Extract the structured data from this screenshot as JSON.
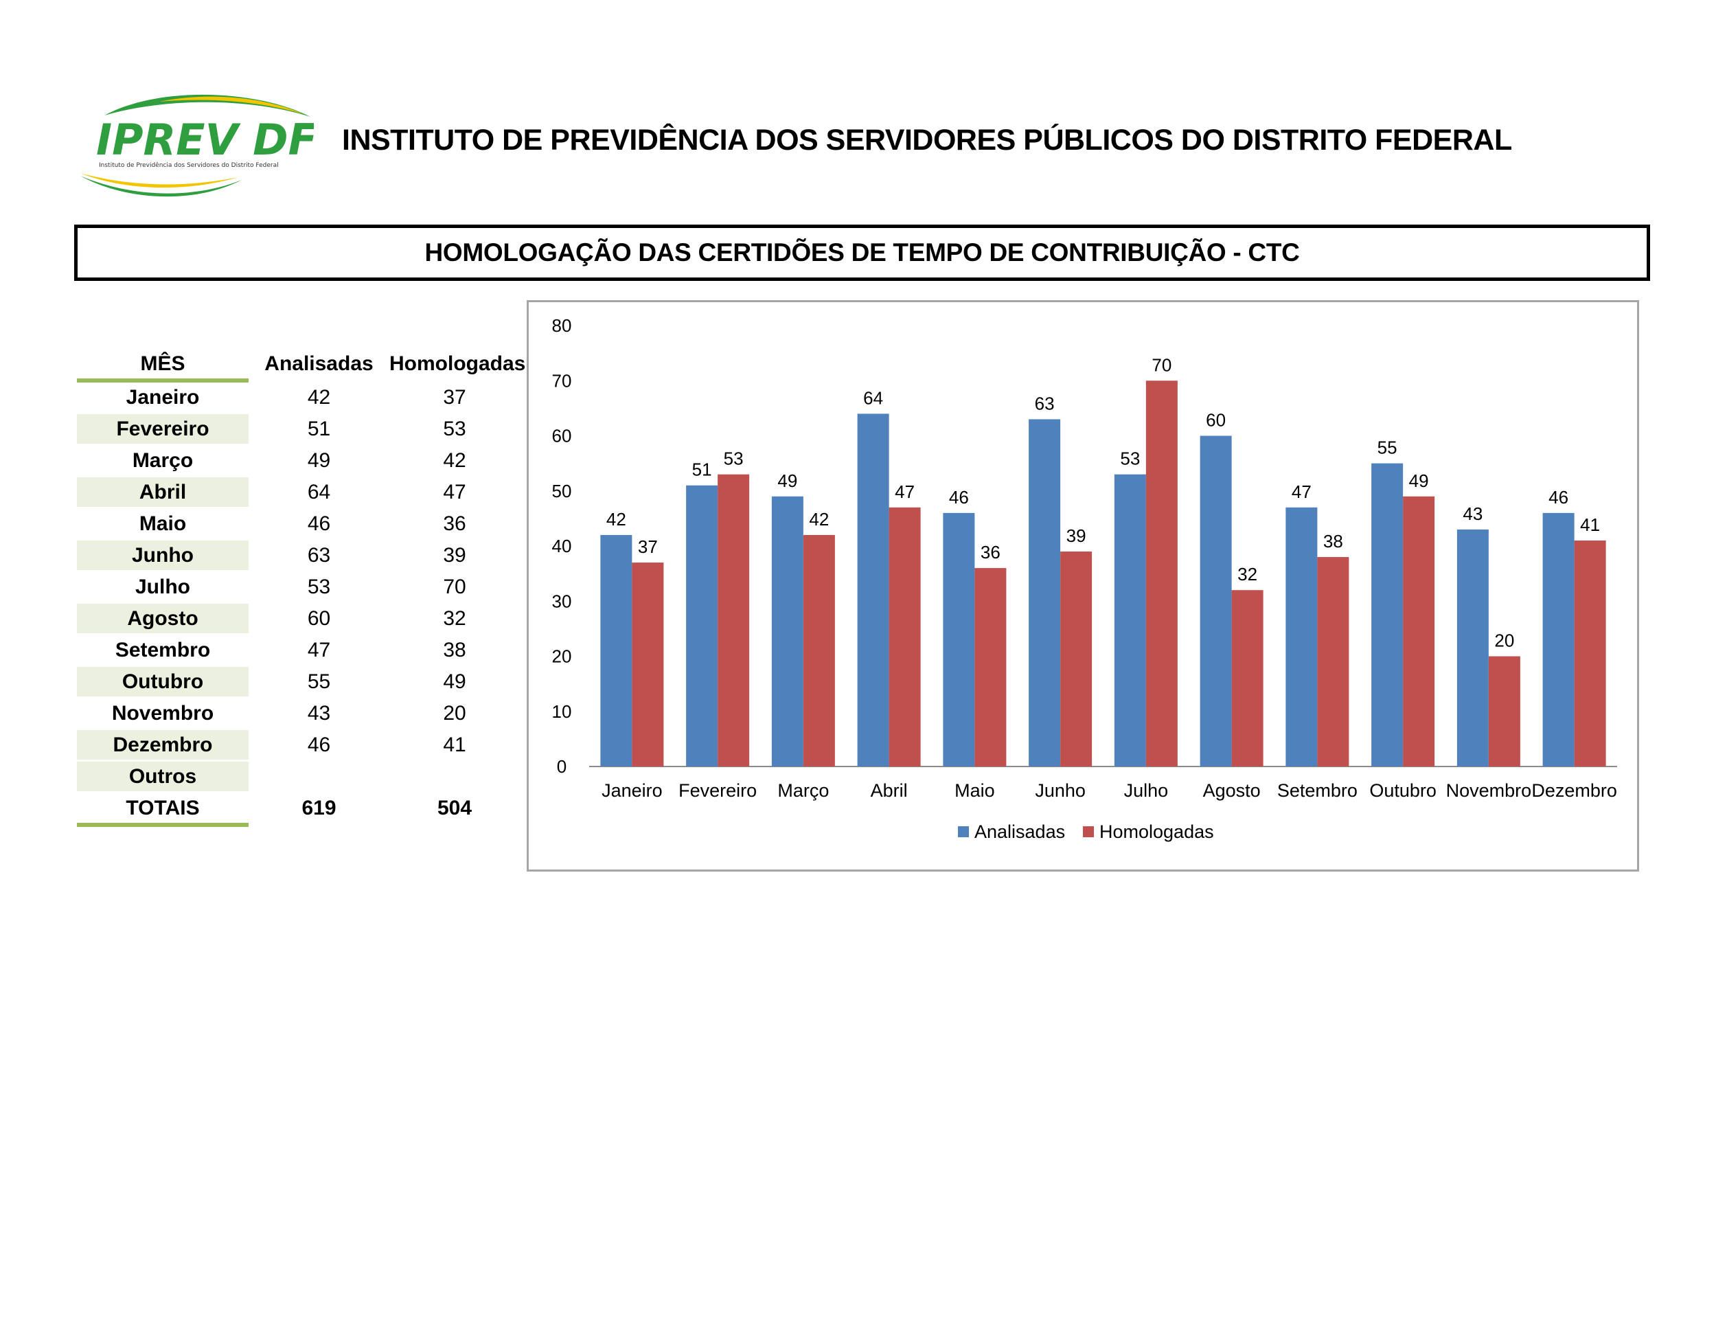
{
  "header": {
    "logo_text": "IPREV DF",
    "logo_subtext": "Instituto de Previdência dos Servidores do Distrito Federal",
    "org_title": "INSTITUTO DE PREVIDÊNCIA DOS SERVIDORES PÚBLICOS DO DISTRITO FEDERAL"
  },
  "report": {
    "title": "HOMOLOGAÇÃO DAS CERTIDÕES DE TEMPO DE CONTRIBUIÇÃO - CTC"
  },
  "table": {
    "headers": {
      "mes": "MÊS",
      "analisadas": "Analisadas",
      "homologadas": "Homologadas"
    },
    "rows": [
      {
        "mes": "Janeiro",
        "analisadas": "42",
        "homologadas": "37"
      },
      {
        "mes": "Fevereiro",
        "analisadas": "51",
        "homologadas": "53"
      },
      {
        "mes": "Março",
        "analisadas": "49",
        "homologadas": "42"
      },
      {
        "mes": "Abril",
        "analisadas": "64",
        "homologadas": "47"
      },
      {
        "mes": "Maio",
        "analisadas": "46",
        "homologadas": "36"
      },
      {
        "mes": "Junho",
        "analisadas": "63",
        "homologadas": "39"
      },
      {
        "mes": "Julho",
        "analisadas": "53",
        "homologadas": "70"
      },
      {
        "mes": "Agosto",
        "analisadas": "60",
        "homologadas": "32"
      },
      {
        "mes": "Setembro",
        "analisadas": "47",
        "homologadas": "38"
      },
      {
        "mes": "Outubro",
        "analisadas": "55",
        "homologadas": "49"
      },
      {
        "mes": "Novembro",
        "analisadas": "43",
        "homologadas": "20"
      },
      {
        "mes": "Dezembro",
        "analisadas": "46",
        "homologadas": "41"
      },
      {
        "mes": "Outros",
        "analisadas": "",
        "homologadas": ""
      }
    ],
    "totals": {
      "label": "TOTAIS",
      "analisadas": "619",
      "homologadas": "504"
    }
  },
  "colors": {
    "analisadas": "#4f81bd",
    "homologadas": "#c0504d",
    "table_shade": "#ebf1de",
    "table_rule": "#9bbb59",
    "logo_green": "#2e9e3e",
    "logo_yellow": "#f2c500"
  },
  "chart_data": {
    "type": "bar",
    "categories": [
      "Janeiro",
      "Fevereiro",
      "Março",
      "Abril",
      "Maio",
      "Junho",
      "Julho",
      "Agosto",
      "Setembro",
      "Outubro",
      "Novembro",
      "Dezembro"
    ],
    "series": [
      {
        "name": "Analisadas",
        "values": [
          42,
          51,
          49,
          64,
          46,
          63,
          53,
          60,
          47,
          55,
          43,
          46
        ]
      },
      {
        "name": "Homologadas",
        "values": [
          37,
          53,
          42,
          47,
          36,
          39,
          70,
          32,
          38,
          49,
          20,
          41
        ]
      }
    ],
    "ylim": [
      0,
      80
    ],
    "yticks": [
      0,
      10,
      20,
      30,
      40,
      50,
      60,
      70,
      80
    ],
    "grid": false,
    "data_labels": true,
    "legend": "bottom-center"
  }
}
